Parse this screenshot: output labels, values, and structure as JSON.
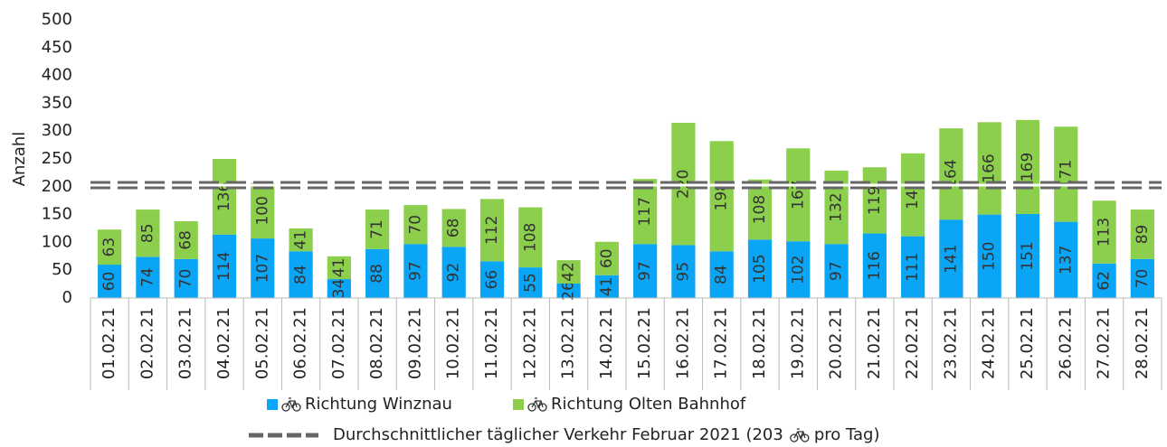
{
  "chart_data": {
    "type": "stacked_bar",
    "y_label": "Anzahl",
    "categories": [
      "01.02.21",
      "02.02.21",
      "03.02.21",
      "04.02.21",
      "05.02.21",
      "06.02.21",
      "07.02.21",
      "08.02.21",
      "09.02.21",
      "10.02.21",
      "11.02.21",
      "12.02.21",
      "13.02.21",
      "14.02.21",
      "15.02.21",
      "16.02.21",
      "17.02.21",
      "18.02.21",
      "19.02.21",
      "20.02.21",
      "21.02.21",
      "22.02.21",
      "23.02.21",
      "24.02.21",
      "25.02.21",
      "26.02.21",
      "27.02.21",
      "28.02.21"
    ],
    "series": [
      {
        "name": "Richtung Winznau",
        "color": "#0aa5f5",
        "values": [
          60,
          74,
          70,
          114,
          107,
          84,
          34,
          88,
          97,
          92,
          66,
          55,
          26,
          41,
          97,
          95,
          84,
          105,
          102,
          97,
          116,
          111,
          141,
          150,
          151,
          137,
          62,
          70
        ]
      },
      {
        "name": "Richtung Olten Bahnhof",
        "color": "#8ccf4d",
        "values": [
          63,
          85,
          68,
          136,
          100,
          41,
          41,
          71,
          70,
          68,
          112,
          108,
          42,
          60,
          117,
          220,
          198,
          108,
          167,
          132,
          119,
          149,
          164,
          166,
          169,
          171,
          113,
          89
        ]
      }
    ],
    "average": {
      "value": 203,
      "color": "#666666",
      "label_parts": [
        "Durchschnittlicher täglicher Verkehr Februar 2021 (203",
        "pro Tag)"
      ]
    },
    "ylim": [
      0,
      500
    ],
    "yticks": [
      0,
      50,
      100,
      150,
      200,
      250,
      300,
      350,
      400,
      450,
      500
    ],
    "grid": false
  }
}
